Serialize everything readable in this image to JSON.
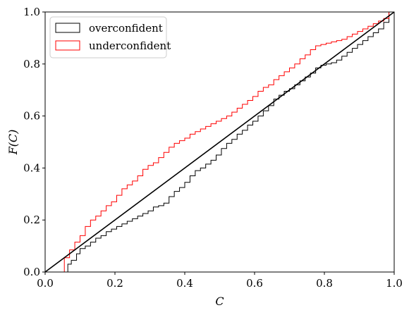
{
  "chart_data": {
    "type": "line",
    "xlabel": "C",
    "ylabel": "F(C)",
    "xlim": [
      0,
      1
    ],
    "ylim": [
      0,
      1
    ],
    "xticks": [
      "0.0",
      "0.2",
      "0.4",
      "0.6",
      "0.8",
      "1.0"
    ],
    "yticks": [
      "0.0",
      "0.2",
      "0.4",
      "0.6",
      "0.8",
      "1.0"
    ],
    "grid": false,
    "legend_position": "top-left",
    "series": [
      {
        "name": "overconfident",
        "style": "step",
        "color": "#000000",
        "x": [
          0.05,
          0.065,
          0.075,
          0.09,
          0.1,
          0.115,
          0.13,
          0.145,
          0.16,
          0.175,
          0.19,
          0.205,
          0.22,
          0.235,
          0.25,
          0.265,
          0.28,
          0.295,
          0.31,
          0.325,
          0.34,
          0.355,
          0.37,
          0.385,
          0.4,
          0.415,
          0.43,
          0.445,
          0.46,
          0.475,
          0.49,
          0.505,
          0.52,
          0.535,
          0.55,
          0.565,
          0.58,
          0.595,
          0.61,
          0.625,
          0.64,
          0.655,
          0.67,
          0.685,
          0.7,
          0.715,
          0.73,
          0.745,
          0.76,
          0.775,
          0.79,
          0.805,
          0.82,
          0.835,
          0.85,
          0.865,
          0.88,
          0.895,
          0.91,
          0.925,
          0.94,
          0.955,
          0.97,
          0.985,
          1.0
        ],
        "y": [
          0.0,
          0.03,
          0.045,
          0.07,
          0.09,
          0.1,
          0.115,
          0.13,
          0.14,
          0.155,
          0.165,
          0.175,
          0.185,
          0.195,
          0.205,
          0.215,
          0.225,
          0.235,
          0.25,
          0.255,
          0.265,
          0.29,
          0.31,
          0.325,
          0.345,
          0.37,
          0.39,
          0.4,
          0.415,
          0.43,
          0.45,
          0.475,
          0.495,
          0.51,
          0.53,
          0.545,
          0.565,
          0.58,
          0.6,
          0.62,
          0.64,
          0.665,
          0.68,
          0.695,
          0.705,
          0.72,
          0.735,
          0.75,
          0.765,
          0.785,
          0.795,
          0.8,
          0.805,
          0.815,
          0.83,
          0.845,
          0.86,
          0.875,
          0.89,
          0.905,
          0.92,
          0.935,
          0.96,
          1.0,
          1.0
        ]
      },
      {
        "name": "underconfident",
        "style": "step",
        "color": "#ff0000",
        "x": [
          0.04,
          0.055,
          0.07,
          0.085,
          0.1,
          0.115,
          0.13,
          0.145,
          0.16,
          0.175,
          0.19,
          0.205,
          0.22,
          0.235,
          0.25,
          0.265,
          0.28,
          0.295,
          0.31,
          0.325,
          0.34,
          0.355,
          0.37,
          0.385,
          0.4,
          0.415,
          0.43,
          0.445,
          0.46,
          0.475,
          0.49,
          0.505,
          0.52,
          0.535,
          0.55,
          0.565,
          0.58,
          0.595,
          0.61,
          0.625,
          0.64,
          0.655,
          0.67,
          0.685,
          0.7,
          0.715,
          0.73,
          0.745,
          0.76,
          0.775,
          0.79,
          0.805,
          0.82,
          0.835,
          0.85,
          0.865,
          0.88,
          0.895,
          0.91,
          0.925,
          0.94,
          0.955,
          0.97,
          0.985,
          1.0
        ],
        "y": [
          0.0,
          0.055,
          0.085,
          0.115,
          0.14,
          0.175,
          0.2,
          0.215,
          0.235,
          0.255,
          0.27,
          0.295,
          0.32,
          0.335,
          0.35,
          0.37,
          0.395,
          0.41,
          0.42,
          0.44,
          0.46,
          0.48,
          0.495,
          0.505,
          0.515,
          0.53,
          0.54,
          0.55,
          0.56,
          0.57,
          0.58,
          0.59,
          0.6,
          0.615,
          0.63,
          0.645,
          0.66,
          0.675,
          0.695,
          0.71,
          0.72,
          0.74,
          0.755,
          0.77,
          0.785,
          0.8,
          0.82,
          0.835,
          0.855,
          0.87,
          0.875,
          0.88,
          0.885,
          0.89,
          0.895,
          0.905,
          0.915,
          0.925,
          0.935,
          0.945,
          0.955,
          0.965,
          0.975,
          1.0,
          1.0
        ]
      },
      {
        "name": "",
        "style": "line",
        "color": "#000000",
        "x": [
          0,
          1
        ],
        "y": [
          0,
          1
        ]
      }
    ]
  }
}
